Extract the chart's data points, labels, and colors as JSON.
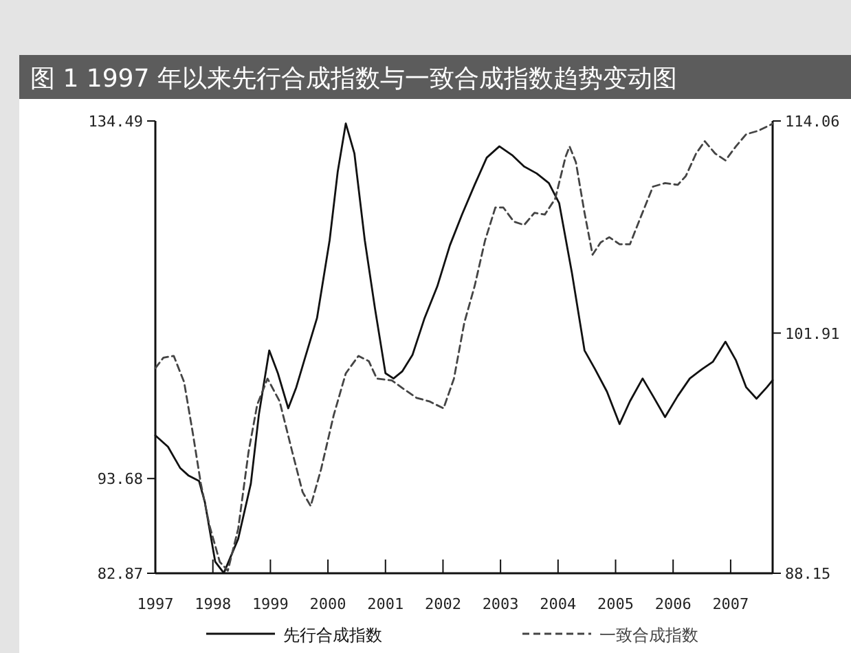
{
  "chart_data": {
    "type": "line",
    "title": "图 1 1997 年以来先行合成指数与一致合成指数趋势变动图",
    "xlim": [
      1997,
      2007.73
    ],
    "xticks": [
      1997,
      1998,
      1999,
      2000,
      2001,
      2002,
      2003,
      2004,
      2005,
      2006,
      2007
    ],
    "ylim": [
      82.87,
      134.49
    ],
    "yticks": [
      82.87,
      93.68,
      134.49
    ],
    "y2lim": [
      88.15,
      114.06
    ],
    "y2ticks": [
      88.15,
      101.91,
      114.06
    ],
    "legend": "bottom",
    "marker": "none",
    "series": [
      {
        "name": "先行合成指数",
        "color": "#111111",
        "line_style": "solid",
        "x": [
          1997.0,
          1997.22,
          1997.43,
          1997.58,
          1997.76,
          1997.86,
          1998.04,
          1998.19,
          1998.44,
          1998.66,
          1998.8,
          1998.98,
          1999.13,
          1999.31,
          1999.45,
          1999.59,
          1999.81,
          2000.03,
          2000.17,
          2000.31,
          2000.46,
          2000.64,
          2000.82,
          2001.0,
          2001.14,
          2001.29,
          2001.47,
          2001.68,
          2001.9,
          2002.12,
          2002.33,
          2002.55,
          2002.76,
          2002.98,
          2003.2,
          2003.41,
          2003.63,
          2003.84,
          2004.02,
          2004.24,
          2004.46,
          2004.64,
          2004.85,
          2005.07,
          2005.25,
          2005.47,
          2005.65,
          2005.86,
          2006.08,
          2006.29,
          2006.51,
          2006.69,
          2006.91,
          2007.09,
          2007.27,
          2007.45,
          2007.63,
          2007.73
        ],
        "values": [
          98.6,
          97.3,
          94.9,
          94.0,
          93.4,
          91.0,
          84.2,
          82.9,
          86.8,
          93.1,
          101.0,
          108.3,
          105.7,
          101.7,
          104.1,
          107.2,
          112.0,
          120.9,
          128.7,
          134.2,
          130.8,
          120.9,
          113.0,
          105.7,
          105.1,
          105.9,
          107.8,
          112.0,
          115.6,
          120.3,
          123.8,
          127.2,
          130.3,
          131.6,
          130.6,
          129.3,
          128.5,
          127.4,
          125.1,
          117.2,
          108.3,
          106.2,
          103.6,
          99.9,
          102.5,
          105.1,
          103.1,
          100.7,
          103.1,
          105.1,
          106.2,
          107.0,
          109.3,
          107.2,
          104.1,
          102.8,
          104.1,
          104.9
        ]
      },
      {
        "name": "一致合成指数",
        "color": "#444444",
        "line_style": "dashed",
        "axis": "y2",
        "x": [
          1997.0,
          1997.14,
          1997.32,
          1997.5,
          1997.65,
          1997.79,
          1997.94,
          1998.12,
          1998.26,
          1998.44,
          1998.62,
          1998.77,
          1998.95,
          1999.16,
          1999.38,
          1999.56,
          1999.7,
          1999.88,
          2000.1,
          2000.31,
          2000.53,
          2000.71,
          2000.85,
          2001.11,
          2001.32,
          2001.54,
          2001.76,
          2002.01,
          2002.19,
          2002.37,
          2002.55,
          2002.73,
          2002.91,
          2003.05,
          2003.23,
          2003.41,
          2003.59,
          2003.77,
          2003.95,
          2004.13,
          2004.2,
          2004.31,
          2004.46,
          2004.6,
          2004.74,
          2004.89,
          2005.07,
          2005.25,
          2005.43,
          2005.65,
          2005.86,
          2006.08,
          2006.22,
          2006.4,
          2006.55,
          2006.73,
          2006.91,
          2007.09,
          2007.27,
          2007.48,
          2007.73
        ],
        "values": [
          99.9,
          100.5,
          100.6,
          99.1,
          96.2,
          93.3,
          90.9,
          88.8,
          88.3,
          90.7,
          95.1,
          97.8,
          99.3,
          98.0,
          95.1,
          92.8,
          92.0,
          94.1,
          97.2,
          99.6,
          100.6,
          100.3,
          99.3,
          99.2,
          98.7,
          98.2,
          98.0,
          97.6,
          99.3,
          102.5,
          104.6,
          107.2,
          109.1,
          109.1,
          108.3,
          108.1,
          108.8,
          108.7,
          109.6,
          112.0,
          112.6,
          111.7,
          108.8,
          106.4,
          107.1,
          107.4,
          107.0,
          107.0,
          108.5,
          110.3,
          110.5,
          110.4,
          110.9,
          112.2,
          112.9,
          112.2,
          111.8,
          112.6,
          113.3,
          113.5,
          113.9
        ]
      }
    ]
  }
}
